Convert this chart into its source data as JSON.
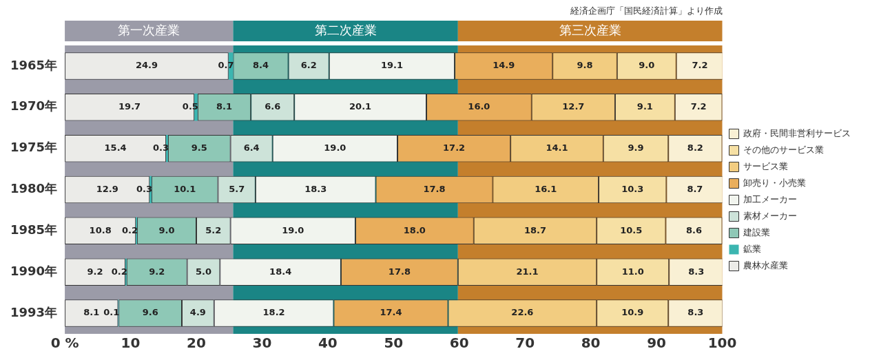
{
  "chart_data": {
    "type": "bar",
    "orientation": "horizontal",
    "stacked": true,
    "grid": false,
    "legend": "right",
    "annotations": [
      "経済企画庁「国民経済計算」より作成"
    ],
    "categories": [
      "1965年",
      "1970年",
      "1975年",
      "1980年",
      "1985年",
      "1990年",
      "1993年"
    ],
    "series": [
      {
        "name": "農林水産業",
        "color": "#ebebe8",
        "values": [
          24.9,
          19.7,
          15.4,
          12.9,
          10.8,
          9.2,
          8.1
        ],
        "value_labels": [
          "24.9",
          "19.7",
          "15.4",
          "12.9",
          "10.8",
          "9.2",
          "8.1"
        ]
      },
      {
        "name": "鉱業",
        "color": "#3bb5b0",
        "values": [
          0.7,
          0.5,
          0.3,
          0.3,
          0.2,
          0.2,
          0.1
        ],
        "value_labels": [
          "0.7",
          "0.5",
          "0.3",
          "0.3",
          "0.2",
          "0.2",
          "0.1"
        ]
      },
      {
        "name": "建設業",
        "color": "#8ec8b6",
        "values": [
          8.4,
          8.1,
          9.5,
          10.1,
          9.0,
          9.2,
          9.6
        ],
        "value_labels": [
          "8.4",
          "8.1",
          "9.5",
          "10.1",
          "9.0",
          "9.2",
          "9.6"
        ]
      },
      {
        "name": "素材メーカー",
        "color": "#cde3d9",
        "values": [
          6.2,
          6.6,
          6.4,
          5.7,
          5.2,
          5.0,
          4.9
        ],
        "value_labels": [
          "6.2",
          "6.6",
          "6.4",
          "5.7",
          "5.2",
          "5.0",
          "4.9"
        ]
      },
      {
        "name": "加工メーカー",
        "color": "#f1f4ee",
        "values": [
          19.1,
          20.1,
          19.0,
          18.3,
          19.0,
          18.4,
          18.2
        ],
        "value_labels": [
          "19.1",
          "20.1",
          "19.0",
          "18.3",
          "19.0",
          "18.4",
          "18.2"
        ]
      },
      {
        "name": "卸売り・小売業",
        "color": "#e9ae5c",
        "values": [
          14.9,
          16.0,
          17.2,
          17.8,
          18.0,
          17.8,
          17.4
        ],
        "value_labels": [
          "14.9",
          "16.0",
          "17.2",
          "17.8",
          "18.0",
          "17.8",
          "17.4"
        ]
      },
      {
        "name": "サービス業",
        "color": "#f2cc80",
        "values": [
          9.8,
          12.7,
          14.1,
          16.1,
          18.7,
          21.1,
          22.6
        ],
        "value_labels": [
          "9.8",
          "12.7",
          "14.1",
          "16.1",
          "18.7",
          "21.1",
          "22.6"
        ]
      },
      {
        "name": "その他のサービス業",
        "color": "#f6e0a4",
        "values": [
          9.0,
          9.1,
          9.9,
          10.3,
          10.5,
          11.0,
          10.9
        ],
        "value_labels": [
          "9.0",
          "9.1",
          "9.9",
          "10.3",
          "10.5",
          "11.0",
          "10.9"
        ]
      },
      {
        "name": "政府・民間非営利サービス",
        "color": "#f9f0d4",
        "values": [
          7.2,
          7.2,
          8.2,
          8.7,
          8.6,
          8.3,
          8.3
        ],
        "value_labels": [
          "7.2",
          "7.2",
          "8.2",
          "8.7",
          "8.6",
          "8.3",
          "8.3"
        ]
      }
    ],
    "bands": [
      {
        "axis": "x",
        "from": 0,
        "to": 25.6,
        "label": "第一次産業",
        "color": "#9b9ba8"
      },
      {
        "axis": "x",
        "from": 25.6,
        "to": 59.8,
        "label": "第二次産業",
        "color": "#1a8585"
      },
      {
        "axis": "x",
        "from": 59.8,
        "to": 100,
        "label": "第三次産業",
        "color": "#c47f2c"
      }
    ],
    "xlim": [
      0,
      100
    ],
    "xticks": [
      {
        "value": 0,
        "label": "0 %"
      },
      10,
      20,
      30,
      40,
      50,
      60,
      70,
      80,
      90,
      100
    ]
  }
}
